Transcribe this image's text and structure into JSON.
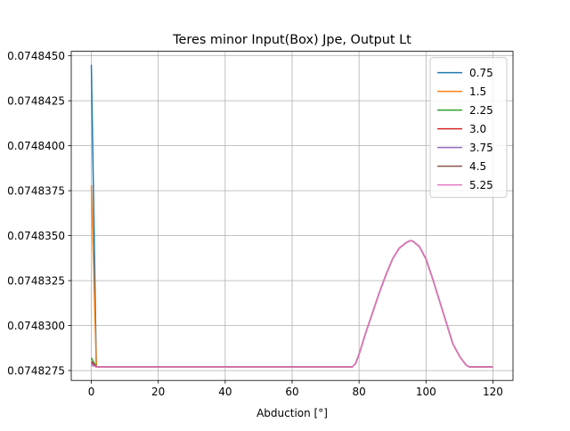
{
  "chart_data": {
    "type": "line",
    "title": "Teres minor Input(Box) Jpe, Output Lt",
    "xlabel": "Abduction [°]",
    "ylabel": "",
    "xlim": [
      -6,
      126
    ],
    "ylim": [
      0.07482695,
      0.07484525
    ],
    "x_ticks": [
      0,
      20,
      40,
      60,
      80,
      100,
      120
    ],
    "y_ticks": [
      0.0748275,
      0.07483,
      0.0748325,
      0.074835,
      0.0748375,
      0.07484,
      0.0748425,
      0.074845
    ],
    "y_tick_labels": [
      "0.0748275",
      "0.0748300",
      "0.0748325",
      "0.0748350",
      "0.0748375",
      "0.0748400",
      "0.0748425",
      "0.0748450"
    ],
    "grid": true,
    "legend_position": "top-right",
    "series": [
      {
        "name": "0.75",
        "color": "#1f77b4",
        "start_value": 0.0748445
      },
      {
        "name": "1.5",
        "color": "#ff7f0e",
        "start_value": 0.0748378
      },
      {
        "name": "2.25",
        "color": "#2ca02c",
        "start_value": 0.0748282
      },
      {
        "name": "3.0",
        "color": "#d62728",
        "start_value": 0.074828
      },
      {
        "name": "3.75",
        "color": "#9467bd",
        "start_value": 0.0748279
      },
      {
        "name": "4.5",
        "color": "#8c564b",
        "start_value": 0.0748278
      },
      {
        "name": "5.25",
        "color": "#e377c2",
        "start_value": 0.0748278
      }
    ],
    "common_curve": {
      "x": [
        1.5,
        78,
        79,
        80,
        81,
        82,
        84,
        86,
        88,
        90,
        92,
        94,
        95,
        96,
        98,
        100,
        102,
        104,
        106,
        108,
        110,
        112,
        113,
        120
      ],
      "y": [
        0.0748277,
        0.0748277,
        0.0748279,
        0.0748284,
        0.074829,
        0.0748296,
        0.0748307,
        0.0748318,
        0.0748328,
        0.0748337,
        0.0748343,
        0.0748346,
        0.0748347,
        0.0748347,
        0.0748344,
        0.0748337,
        0.0748326,
        0.0748314,
        0.0748302,
        0.074829,
        0.0748283,
        0.0748278,
        0.0748277,
        0.0748277
      ]
    }
  }
}
